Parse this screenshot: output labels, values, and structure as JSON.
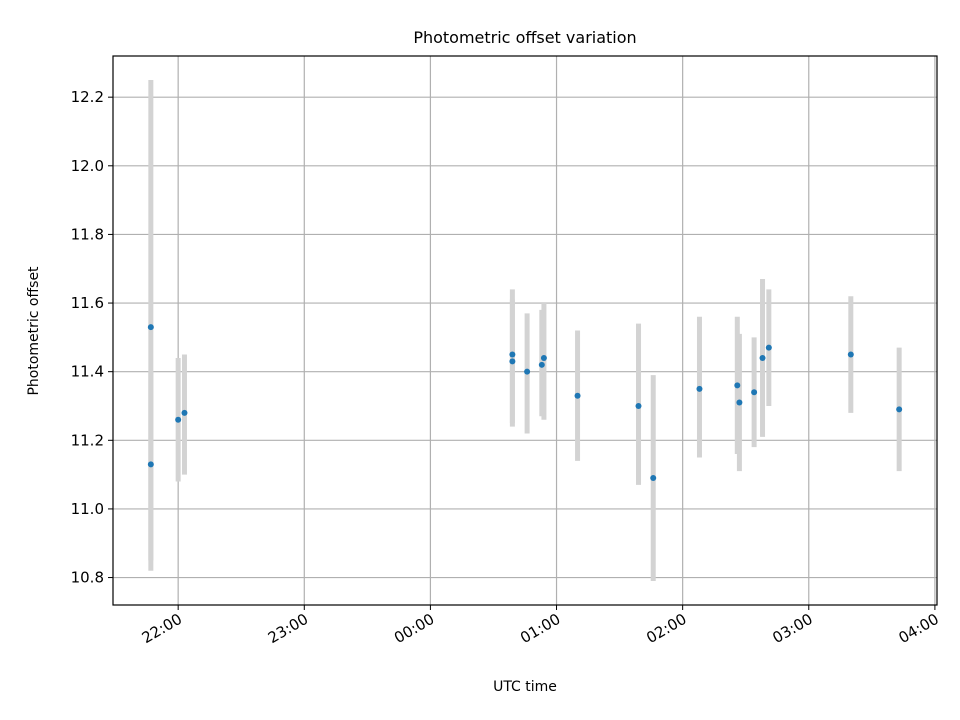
{
  "chart_data": {
    "type": "scatter",
    "title": "Photometric offset variation",
    "xlabel": "UTC time",
    "ylabel": "Photometric offset",
    "xlim": [
      "21:29",
      "04:01"
    ],
    "ylim": [
      10.72,
      12.32
    ],
    "x_ticks": [
      "22:00",
      "23:00",
      "00:00",
      "01:00",
      "02:00",
      "03:00",
      "04:00"
    ],
    "y_ticks": [
      10.8,
      11.0,
      11.2,
      11.4,
      11.6,
      11.8,
      12.0,
      12.2
    ],
    "grid": true,
    "series": [
      {
        "points": [
          {
            "x": "21:47",
            "y": 11.53,
            "err_low": 10.82,
            "err_high": 12.25
          },
          {
            "x": "21:47",
            "y": 11.13,
            "err_low": 10.85,
            "err_high": 11.4
          },
          {
            "x": "22:00",
            "y": 11.26,
            "err_low": 11.08,
            "err_high": 11.44
          },
          {
            "x": "22:03",
            "y": 11.28,
            "err_low": 11.1,
            "err_high": 11.45
          },
          {
            "x": "00:39",
            "y": 11.45,
            "err_low": 11.24,
            "err_high": 11.64
          },
          {
            "x": "00:39",
            "y": 11.43,
            "err_low": 11.25,
            "err_high": 11.61
          },
          {
            "x": "00:46",
            "y": 11.4,
            "err_low": 11.22,
            "err_high": 11.57
          },
          {
            "x": "00:53",
            "y": 11.42,
            "err_low": 11.27,
            "err_high": 11.58
          },
          {
            "x": "00:54",
            "y": 11.44,
            "err_low": 11.26,
            "err_high": 11.6
          },
          {
            "x": "01:10",
            "y": 11.33,
            "err_low": 11.14,
            "err_high": 11.52
          },
          {
            "x": "01:39",
            "y": 11.3,
            "err_low": 11.07,
            "err_high": 11.54
          },
          {
            "x": "01:46",
            "y": 11.09,
            "err_low": 10.79,
            "err_high": 11.39
          },
          {
            "x": "02:08",
            "y": 11.35,
            "err_low": 11.15,
            "err_high": 11.56
          },
          {
            "x": "02:26",
            "y": 11.36,
            "err_low": 11.16,
            "err_high": 11.56
          },
          {
            "x": "02:27",
            "y": 11.31,
            "err_low": 11.11,
            "err_high": 11.51
          },
          {
            "x": "02:34",
            "y": 11.34,
            "err_low": 11.18,
            "err_high": 11.5
          },
          {
            "x": "02:38",
            "y": 11.44,
            "err_low": 11.21,
            "err_high": 11.67
          },
          {
            "x": "02:41",
            "y": 11.47,
            "err_low": 11.3,
            "err_high": 11.64
          },
          {
            "x": "03:20",
            "y": 11.45,
            "err_low": 11.28,
            "err_high": 11.62
          },
          {
            "x": "03:43",
            "y": 11.29,
            "err_low": 11.11,
            "err_high": 11.47
          }
        ]
      }
    ],
    "colors": {
      "points": "#1f77b4",
      "error_bars": "#d3d3d3",
      "grid": "#b0b0b0",
      "axes": "#000000"
    }
  }
}
